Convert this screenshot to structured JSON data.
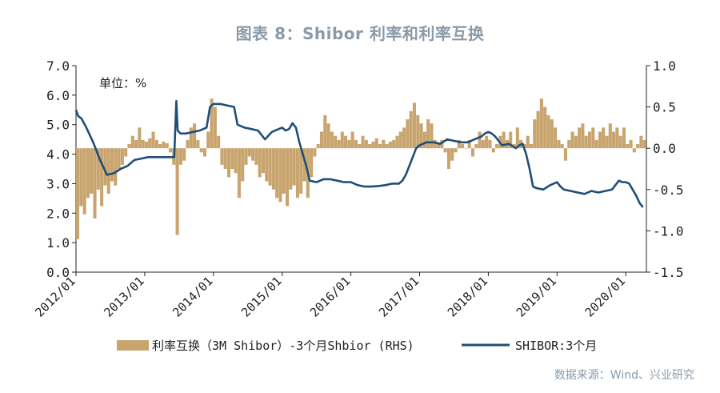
{
  "title": "图表 8：Shibor 利率和利率互换",
  "source": "数据来源：Wind、兴业研究",
  "unit_label": "单位：%",
  "colors": {
    "bar": "#c8a46e",
    "line": "#1f4e79",
    "title": "#8a9aa8"
  },
  "chart_data": {
    "type": "bar+line",
    "x_ticks": [
      "2012/01",
      "2013/01",
      "2014/01",
      "2015/01",
      "2016/01",
      "2017/01",
      "2018/01",
      "2019/01",
      "2020/01"
    ],
    "y_left": {
      "ticks": [
        "7.0",
        "6.0",
        "5.0",
        "4.0",
        "3.0",
        "2.0",
        "1.0",
        "0.0"
      ],
      "ylim": [
        0,
        7
      ]
    },
    "y_right": {
      "ticks": [
        "1.0",
        "0.5",
        "0.0",
        "-0.5",
        "-1.0",
        "-1.5"
      ],
      "ylim": [
        -1.5,
        1.0
      ]
    },
    "series": [
      {
        "name": "利率互换（3M Shibor）-3个月Shbior (RHS)",
        "type": "bar",
        "axis": "right",
        "points": [
          [
            2012.0,
            -1.1
          ],
          [
            2012.05,
            -0.7
          ],
          [
            2012.1,
            -0.8
          ],
          [
            2012.15,
            -0.6
          ],
          [
            2012.2,
            -0.55
          ],
          [
            2012.25,
            -0.85
          ],
          [
            2012.3,
            -0.5
          ],
          [
            2012.35,
            -0.7
          ],
          [
            2012.4,
            -0.45
          ],
          [
            2012.45,
            -0.55
          ],
          [
            2012.5,
            -0.4
          ],
          [
            2012.55,
            -0.45
          ],
          [
            2012.6,
            -0.25
          ],
          [
            2012.65,
            -0.2
          ],
          [
            2012.7,
            -0.1
          ],
          [
            2012.75,
            0.05
          ],
          [
            2012.8,
            0.15
          ],
          [
            2012.85,
            0.1
          ],
          [
            2012.9,
            0.25
          ],
          [
            2012.95,
            0.1
          ],
          [
            2013.0,
            0.08
          ],
          [
            2013.05,
            0.12
          ],
          [
            2013.1,
            0.2
          ],
          [
            2013.15,
            0.1
          ],
          [
            2013.2,
            0.05
          ],
          [
            2013.25,
            0.08
          ],
          [
            2013.3,
            0.06
          ],
          [
            2013.35,
            -0.05
          ],
          [
            2013.4,
            -0.2
          ],
          [
            2013.45,
            -1.05
          ],
          [
            2013.5,
            -0.2
          ],
          [
            2013.55,
            -0.15
          ],
          [
            2013.6,
            0.1
          ],
          [
            2013.65,
            0.25
          ],
          [
            2013.7,
            0.3
          ],
          [
            2013.75,
            0.1
          ],
          [
            2013.8,
            -0.05
          ],
          [
            2013.85,
            -0.1
          ],
          [
            2013.9,
            0.2
          ],
          [
            2013.95,
            0.6
          ],
          [
            2014.0,
            0.5
          ],
          [
            2014.05,
            0.15
          ],
          [
            2014.1,
            -0.2
          ],
          [
            2014.15,
            -0.25
          ],
          [
            2014.2,
            -0.35
          ],
          [
            2014.25,
            -0.25
          ],
          [
            2014.3,
            -0.3
          ],
          [
            2014.35,
            -0.6
          ],
          [
            2014.4,
            -0.4
          ],
          [
            2014.45,
            -0.2
          ],
          [
            2014.5,
            -0.1
          ],
          [
            2014.55,
            -0.15
          ],
          [
            2014.6,
            -0.2
          ],
          [
            2014.65,
            -0.35
          ],
          [
            2014.7,
            -0.3
          ],
          [
            2014.75,
            -0.4
          ],
          [
            2014.8,
            -0.45
          ],
          [
            2014.85,
            -0.5
          ],
          [
            2014.9,
            -0.6
          ],
          [
            2014.95,
            -0.65
          ],
          [
            2015.0,
            -0.55
          ],
          [
            2015.05,
            -0.7
          ],
          [
            2015.1,
            -0.5
          ],
          [
            2015.15,
            -0.45
          ],
          [
            2015.2,
            -0.6
          ],
          [
            2015.25,
            -0.55
          ],
          [
            2015.3,
            -0.4
          ],
          [
            2015.35,
            -0.6
          ],
          [
            2015.4,
            -0.35
          ],
          [
            2015.45,
            -0.1
          ],
          [
            2015.5,
            0.05
          ],
          [
            2015.55,
            0.2
          ],
          [
            2015.6,
            0.4
          ],
          [
            2015.65,
            0.3
          ],
          [
            2015.7,
            0.2
          ],
          [
            2015.75,
            0.15
          ],
          [
            2015.8,
            0.1
          ],
          [
            2015.85,
            0.2
          ],
          [
            2015.9,
            0.15
          ],
          [
            2015.95,
            0.1
          ],
          [
            2016.0,
            0.2
          ],
          [
            2016.05,
            0.1
          ],
          [
            2016.1,
            0.05
          ],
          [
            2016.15,
            0.15
          ],
          [
            2016.2,
            0.1
          ],
          [
            2016.25,
            0.05
          ],
          [
            2016.3,
            0.08
          ],
          [
            2016.35,
            0.12
          ],
          [
            2016.4,
            0.05
          ],
          [
            2016.45,
            0.1
          ],
          [
            2016.5,
            0.05
          ],
          [
            2016.55,
            0.08
          ],
          [
            2016.6,
            0.1
          ],
          [
            2016.65,
            0.15
          ],
          [
            2016.7,
            0.2
          ],
          [
            2016.75,
            0.25
          ],
          [
            2016.8,
            0.35
          ],
          [
            2016.85,
            0.45
          ],
          [
            2016.9,
            0.55
          ],
          [
            2016.95,
            0.4
          ],
          [
            2017.0,
            0.3
          ],
          [
            2017.05,
            0.2
          ],
          [
            2017.1,
            0.35
          ],
          [
            2017.15,
            0.3
          ],
          [
            2017.2,
            0.1
          ],
          [
            2017.25,
            0.05
          ],
          [
            2017.3,
            0.1
          ],
          [
            2017.35,
            -0.05
          ],
          [
            2017.4,
            -0.25
          ],
          [
            2017.45,
            -0.15
          ],
          [
            2017.5,
            -0.05
          ],
          [
            2017.55,
            0.1
          ],
          [
            2017.6,
            0.05
          ],
          [
            2017.65,
            0.0
          ],
          [
            2017.7,
            0.1
          ],
          [
            2017.75,
            -0.1
          ],
          [
            2017.8,
            0.05
          ],
          [
            2017.85,
            0.2
          ],
          [
            2017.9,
            0.1
          ],
          [
            2017.95,
            0.15
          ],
          [
            2018.0,
            0.1
          ],
          [
            2018.05,
            -0.05
          ],
          [
            2018.1,
            0.05
          ],
          [
            2018.15,
            0.15
          ],
          [
            2018.2,
            0.2
          ],
          [
            2018.25,
            0.1
          ],
          [
            2018.3,
            0.2
          ],
          [
            2018.35,
            0.05
          ],
          [
            2018.4,
            0.25
          ],
          [
            2018.45,
            0.1
          ],
          [
            2018.5,
            0.05
          ],
          [
            2018.55,
            0.15
          ],
          [
            2018.6,
            0.05
          ],
          [
            2018.65,
            0.35
          ],
          [
            2018.7,
            0.45
          ],
          [
            2018.75,
            0.6
          ],
          [
            2018.8,
            0.5
          ],
          [
            2018.85,
            0.4
          ],
          [
            2018.9,
            0.35
          ],
          [
            2018.95,
            0.25
          ],
          [
            2019.0,
            0.1
          ],
          [
            2019.05,
            0.05
          ],
          [
            2019.1,
            -0.15
          ],
          [
            2019.15,
            0.1
          ],
          [
            2019.2,
            0.2
          ],
          [
            2019.25,
            0.15
          ],
          [
            2019.3,
            0.25
          ],
          [
            2019.35,
            0.3
          ],
          [
            2019.4,
            0.15
          ],
          [
            2019.45,
            0.2
          ],
          [
            2019.5,
            0.25
          ],
          [
            2019.55,
            0.1
          ],
          [
            2019.6,
            0.2
          ],
          [
            2019.65,
            0.25
          ],
          [
            2019.7,
            0.15
          ],
          [
            2019.75,
            0.3
          ],
          [
            2019.8,
            0.2
          ],
          [
            2019.85,
            0.25
          ],
          [
            2019.9,
            0.15
          ],
          [
            2019.95,
            0.25
          ],
          [
            2020.0,
            0.05
          ],
          [
            2020.05,
            0.1
          ],
          [
            2020.1,
            -0.05
          ],
          [
            2020.15,
            0.05
          ],
          [
            2020.2,
            0.15
          ],
          [
            2020.25,
            0.1
          ]
        ]
      },
      {
        "name": "SHIBOR:3个月",
        "type": "line",
        "axis": "left",
        "points": [
          [
            2012.0,
            5.5
          ],
          [
            2012.03,
            5.3
          ],
          [
            2012.08,
            5.2
          ],
          [
            2012.15,
            4.9
          ],
          [
            2012.25,
            4.4
          ],
          [
            2012.35,
            3.8
          ],
          [
            2012.45,
            3.3
          ],
          [
            2012.55,
            3.35
          ],
          [
            2012.65,
            3.5
          ],
          [
            2012.75,
            3.6
          ],
          [
            2012.85,
            3.8
          ],
          [
            2012.95,
            3.85
          ],
          [
            2013.05,
            3.9
          ],
          [
            2013.15,
            3.9
          ],
          [
            2013.25,
            3.9
          ],
          [
            2013.35,
            3.9
          ],
          [
            2013.43,
            3.9
          ],
          [
            2013.46,
            5.8
          ],
          [
            2013.48,
            4.8
          ],
          [
            2013.52,
            4.7
          ],
          [
            2013.6,
            4.7
          ],
          [
            2013.7,
            4.75
          ],
          [
            2013.8,
            4.8
          ],
          [
            2013.9,
            4.9
          ],
          [
            2013.95,
            5.6
          ],
          [
            2014.0,
            5.7
          ],
          [
            2014.1,
            5.7
          ],
          [
            2014.2,
            5.65
          ],
          [
            2014.3,
            5.6
          ],
          [
            2014.35,
            5.0
          ],
          [
            2014.45,
            4.9
          ],
          [
            2014.55,
            4.85
          ],
          [
            2014.65,
            4.8
          ],
          [
            2014.75,
            4.5
          ],
          [
            2014.85,
            4.75
          ],
          [
            2014.95,
            4.85
          ],
          [
            2015.0,
            4.9
          ],
          [
            2015.05,
            4.8
          ],
          [
            2015.1,
            4.85
          ],
          [
            2015.15,
            5.05
          ],
          [
            2015.2,
            4.9
          ],
          [
            2015.25,
            4.4
          ],
          [
            2015.35,
            3.6
          ],
          [
            2015.4,
            3.1
          ],
          [
            2015.5,
            3.05
          ],
          [
            2015.6,
            3.15
          ],
          [
            2015.7,
            3.15
          ],
          [
            2015.8,
            3.1
          ],
          [
            2015.9,
            3.05
          ],
          [
            2016.0,
            3.05
          ],
          [
            2016.1,
            2.95
          ],
          [
            2016.2,
            2.9
          ],
          [
            2016.3,
            2.9
          ],
          [
            2016.4,
            2.92
          ],
          [
            2016.5,
            2.95
          ],
          [
            2016.6,
            3.0
          ],
          [
            2016.7,
            3.0
          ],
          [
            2016.75,
            3.1
          ],
          [
            2016.8,
            3.3
          ],
          [
            2016.85,
            3.6
          ],
          [
            2016.9,
            3.9
          ],
          [
            2016.95,
            4.2
          ],
          [
            2017.0,
            4.3
          ],
          [
            2017.05,
            4.35
          ],
          [
            2017.1,
            4.4
          ],
          [
            2017.2,
            4.4
          ],
          [
            2017.3,
            4.35
          ],
          [
            2017.4,
            4.5
          ],
          [
            2017.5,
            4.45
          ],
          [
            2017.6,
            4.4
          ],
          [
            2017.7,
            4.4
          ],
          [
            2017.8,
            4.5
          ],
          [
            2017.9,
            4.6
          ],
          [
            2017.95,
            4.7
          ],
          [
            2018.0,
            4.75
          ],
          [
            2018.05,
            4.7
          ],
          [
            2018.1,
            4.6
          ],
          [
            2018.2,
            4.3
          ],
          [
            2018.3,
            4.35
          ],
          [
            2018.4,
            4.2
          ],
          [
            2018.45,
            4.3
          ],
          [
            2018.5,
            4.35
          ],
          [
            2018.55,
            4.0
          ],
          [
            2018.6,
            3.5
          ],
          [
            2018.65,
            2.9
          ],
          [
            2018.7,
            2.85
          ],
          [
            2018.8,
            2.8
          ],
          [
            2018.9,
            2.95
          ],
          [
            2019.0,
            3.05
          ],
          [
            2019.05,
            2.9
          ],
          [
            2019.1,
            2.8
          ],
          [
            2019.2,
            2.75
          ],
          [
            2019.3,
            2.7
          ],
          [
            2019.4,
            2.65
          ],
          [
            2019.5,
            2.75
          ],
          [
            2019.6,
            2.7
          ],
          [
            2019.7,
            2.75
          ],
          [
            2019.8,
            2.8
          ],
          [
            2019.9,
            3.1
          ],
          [
            2019.95,
            3.05
          ],
          [
            2020.0,
            3.05
          ],
          [
            2020.05,
            3.0
          ],
          [
            2020.1,
            2.8
          ],
          [
            2020.15,
            2.6
          ],
          [
            2020.2,
            2.35
          ],
          [
            2020.25,
            2.2
          ]
        ]
      }
    ]
  }
}
